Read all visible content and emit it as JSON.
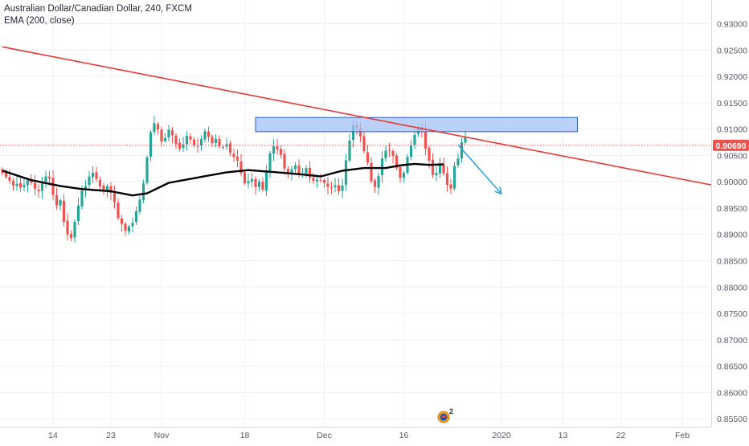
{
  "legend": {
    "symbol_line": "Australian Dollar/Canadian Dollar, 240, FXCM",
    "indicator_line": "EMA (200, close)"
  },
  "colors": {
    "background": "#ffffff",
    "grid": "#eef0f3",
    "axis_text": "#555a64",
    "up_candle": "#26a69a",
    "down_candle": "#ef5350",
    "ema": "#000000",
    "trendline": "#e53935",
    "zone_fill": "#a4c2f4",
    "zone_border": "#2f5bd0",
    "arrow": "#2a9fd6",
    "price_label_bg": "#ef5350",
    "price_label_text": "#ffffff"
  },
  "chart_data": {
    "type": "candlestick",
    "symbol": "AUDCAD",
    "timeframe": "240",
    "source": "FXCM",
    "y_axis": {
      "ticks": [
        "0.93000",
        "0.92500",
        "0.92000",
        "0.91500",
        "0.91000",
        "0.90500",
        "0.90000",
        "0.89500",
        "0.89000",
        "0.88500",
        "0.88000",
        "0.87500",
        "0.87000",
        "0.86500",
        "0.86000",
        "0.85500"
      ],
      "ylim": [
        0.8535,
        0.9345
      ]
    },
    "x_axis": {
      "ticks": [
        {
          "label": "14",
          "bar": 14
        },
        {
          "label": "23",
          "bar": 30
        },
        {
          "label": "Nov",
          "bar": 44
        },
        {
          "label": "18",
          "bar": 67
        },
        {
          "label": "Dec",
          "bar": 89
        },
        {
          "label": "16",
          "bar": 111
        },
        {
          "label": "2020",
          "bar": 138
        },
        {
          "label": "13",
          "bar": 155
        },
        {
          "label": "22",
          "bar": 171
        },
        {
          "label": "Feb",
          "bar": 188
        }
      ],
      "bar_range": [
        0,
        196
      ]
    },
    "current_price": "0.90690",
    "current_price_value": 0.9069,
    "ema_label": "EMA (200, close)",
    "ema": [
      [
        0,
        0.9021
      ],
      [
        8,
        0.9003
      ],
      [
        16,
        0.8992
      ],
      [
        22,
        0.8986
      ],
      [
        30,
        0.8982
      ],
      [
        36,
        0.8974
      ],
      [
        40,
        0.8978
      ],
      [
        46,
        0.8998
      ],
      [
        54,
        0.9008
      ],
      [
        62,
        0.9018
      ],
      [
        68,
        0.9022
      ],
      [
        76,
        0.9018
      ],
      [
        84,
        0.9013
      ],
      [
        88,
        0.901
      ],
      [
        94,
        0.9021
      ],
      [
        100,
        0.9026
      ],
      [
        106,
        0.9026
      ],
      [
        110,
        0.9031
      ],
      [
        114,
        0.9034
      ],
      [
        118,
        0.9032
      ],
      [
        122,
        0.9033
      ]
    ],
    "candles_close": [
      0.9016,
      0.9009,
      0.9002,
      0.8993,
      0.8996,
      0.8989,
      0.8994,
      0.9003,
      0.8998,
      0.8987,
      0.8982,
      0.9,
      0.901,
      0.9006,
      0.8975,
      0.8955,
      0.8965,
      0.8924,
      0.89,
      0.8893,
      0.8924,
      0.8955,
      0.8983,
      0.8992,
      0.901,
      0.9017,
      0.9005,
      0.8991,
      0.8985,
      0.8992,
      0.8979,
      0.8961,
      0.8931,
      0.892,
      0.8907,
      0.8915,
      0.8922,
      0.8944,
      0.8966,
      0.8997,
      0.9046,
      0.9094,
      0.9111,
      0.9099,
      0.9076,
      0.9083,
      0.9099,
      0.9088,
      0.9072,
      0.9063,
      0.9071,
      0.9087,
      0.908,
      0.907,
      0.9067,
      0.9081,
      0.9096,
      0.9085,
      0.9073,
      0.9081,
      0.9067,
      0.9065,
      0.9071,
      0.9055,
      0.9047,
      0.904,
      0.9016,
      0.8997,
      0.9001,
      0.9005,
      0.899,
      0.9,
      0.8985,
      0.9019,
      0.9054,
      0.9068,
      0.9061,
      0.9051,
      0.9025,
      0.9018,
      0.9024,
      0.9031,
      0.9013,
      0.9015,
      0.9026,
      0.9007,
      0.9002,
      0.9004,
      0.9003,
      0.8998,
      0.899,
      0.8988,
      0.8993,
      0.8982,
      0.8993,
      0.9041,
      0.9078,
      0.9108,
      0.9103,
      0.9086,
      0.9058,
      0.9036,
      0.9001,
      0.899,
      0.9011,
      0.9044,
      0.9059,
      0.906,
      0.9049,
      0.9026,
      0.9007,
      0.9017,
      0.9047,
      0.9069,
      0.9089,
      0.9102,
      0.9098,
      0.9063,
      0.904,
      0.9013,
      0.9017,
      0.9031,
      0.9016,
      0.8994,
      0.8987,
      0.903,
      0.9044,
      0.9075,
      0.9085
    ],
    "trendline": {
      "from": [
        0,
        0.9256
      ],
      "to": [
        196,
        0.8994
      ]
    },
    "resistance_zone": {
      "bar_from": 70,
      "bar_to": 159,
      "price_low": 0.9095,
      "price_high": 0.9122
    },
    "projection_arrow": {
      "from": [
        126,
        0.907
      ],
      "to": [
        138,
        0.8977
      ]
    },
    "event_marker": {
      "bar": 122,
      "count": "2"
    }
  }
}
